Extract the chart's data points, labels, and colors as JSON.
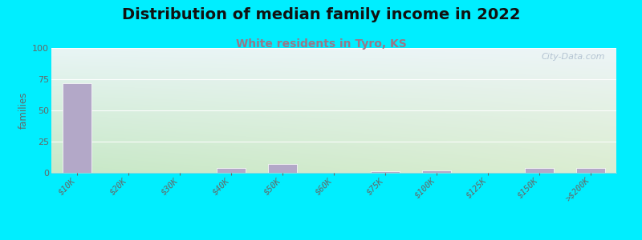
{
  "title": "Distribution of median family income in 2022",
  "subtitle": "White residents in Tyro, KS",
  "categories": [
    "$10K",
    "$20K",
    "$30K",
    "$40K",
    "$50K",
    "$60K",
    "$75K",
    "$100K",
    "$125K",
    "$150K",
    ">$200K"
  ],
  "values": [
    72,
    0,
    0,
    4,
    7,
    0,
    1,
    2,
    0,
    4,
    4
  ],
  "bar_color": "#b3a8c8",
  "bar_edge_color": "#ffffff",
  "ylabel": "families",
  "ylim": [
    0,
    100
  ],
  "yticks": [
    0,
    25,
    50,
    75,
    100
  ],
  "background_outer": "#00eeff",
  "title_fontsize": 14,
  "subtitle_fontsize": 10,
  "subtitle_color": "#997788",
  "watermark": "City-Data.com",
  "watermark_color": "#aabbcc",
  "grid_color": "#e0e8e0",
  "tick_color": "#666666",
  "grad_bottom_left": "#c8e8c8",
  "grad_top_right": "#eef4f0"
}
